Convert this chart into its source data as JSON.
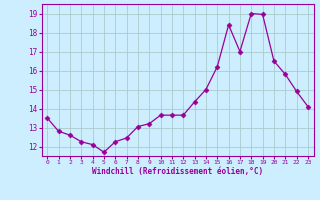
{
  "x": [
    0,
    1,
    2,
    3,
    4,
    5,
    6,
    7,
    8,
    9,
    10,
    11,
    12,
    13,
    14,
    15,
    16,
    17,
    18,
    19,
    20,
    21,
    22,
    23
  ],
  "y": [
    13.5,
    12.8,
    12.6,
    12.25,
    12.1,
    11.7,
    12.25,
    12.45,
    13.05,
    13.2,
    13.65,
    13.65,
    13.65,
    14.35,
    15.0,
    16.2,
    18.4,
    17.0,
    19.0,
    18.95,
    16.5,
    15.8,
    14.9,
    14.1
  ],
  "line_color": "#990099",
  "marker": "D",
  "marker_size": 2.5,
  "bg_color": "#cceeff",
  "grid_color": "#aacccc",
  "xlabel": "Windchill (Refroidissement éolien,°C)",
  "xlabel_color": "#990099",
  "tick_color": "#990099",
  "ylim": [
    11.5,
    19.5
  ],
  "yticks": [
    12,
    13,
    14,
    15,
    16,
    17,
    18,
    19
  ],
  "xticks": [
    0,
    1,
    2,
    3,
    4,
    5,
    6,
    7,
    8,
    9,
    10,
    11,
    12,
    13,
    14,
    15,
    16,
    17,
    18,
    19,
    20,
    21,
    22,
    23
  ],
  "xtick_labels": [
    "0",
    "1",
    "2",
    "3",
    "4",
    "5",
    "6",
    "7",
    "8",
    "9",
    "10",
    "11",
    "12",
    "13",
    "14",
    "15",
    "16",
    "17",
    "18",
    "19",
    "20",
    "21",
    "22",
    "23"
  ]
}
